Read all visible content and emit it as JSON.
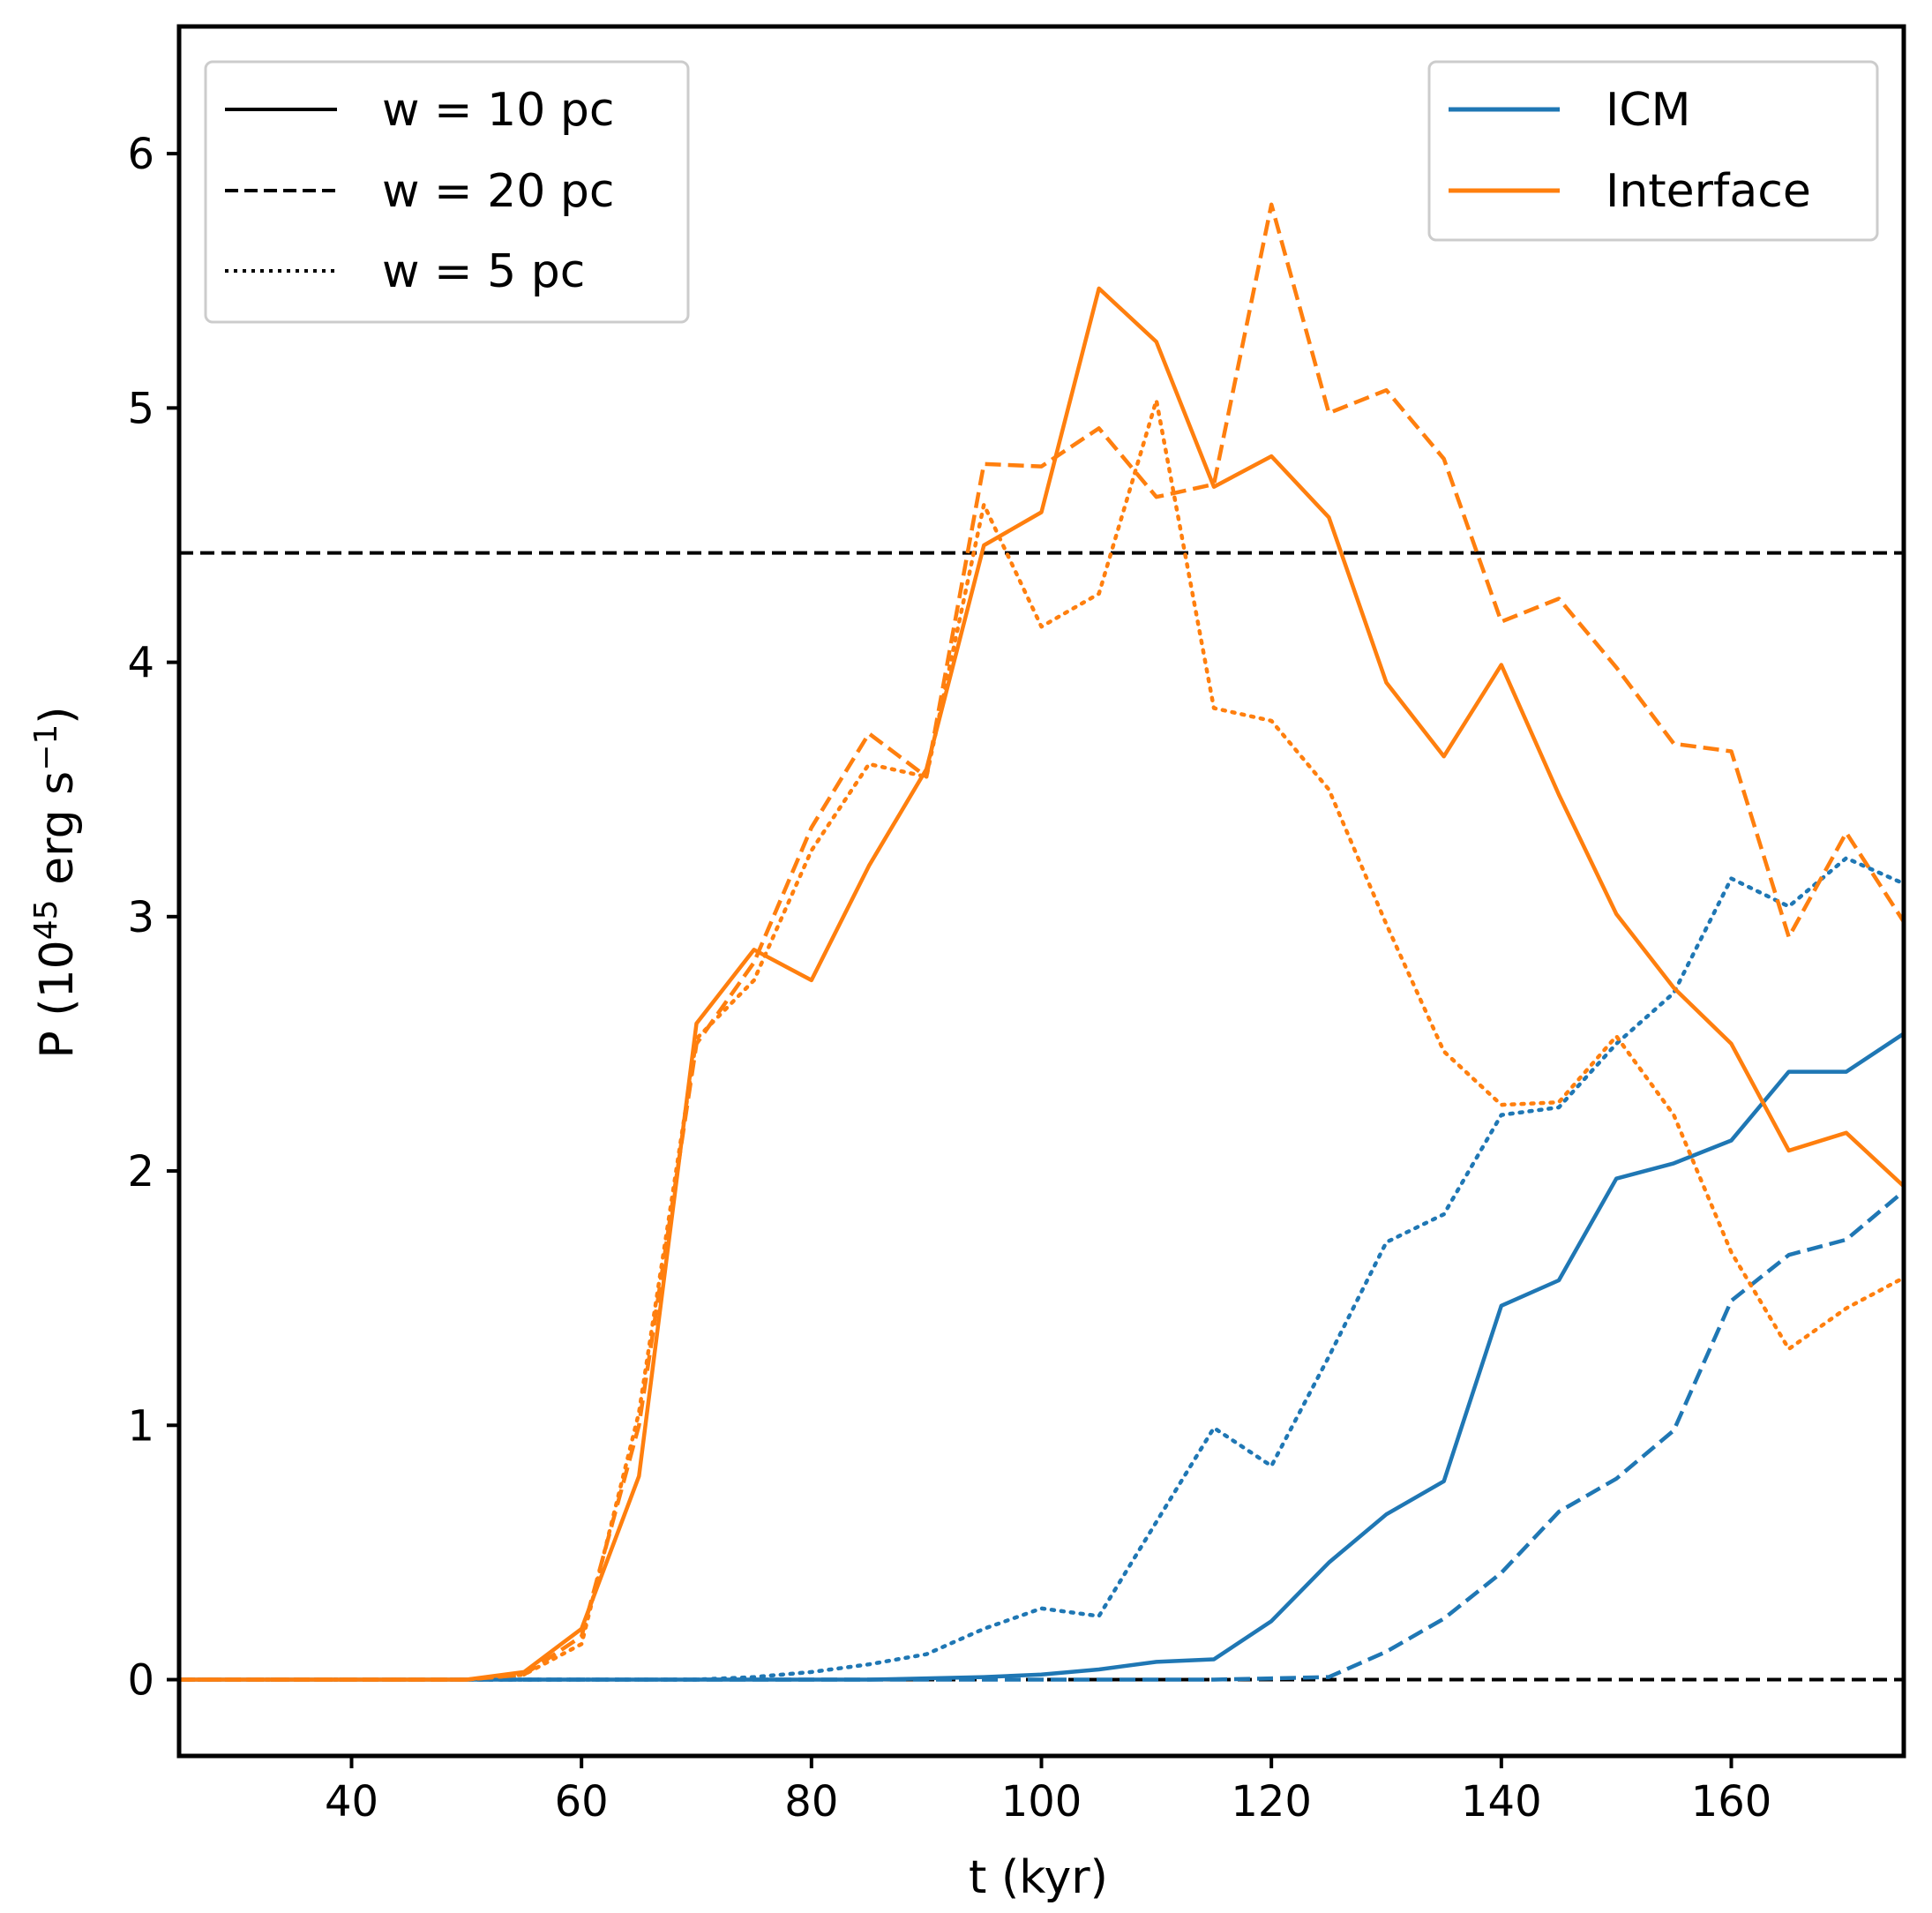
{
  "chart_data": {
    "type": "line",
    "xlabel": "t (kyr)",
    "ylabel": {
      "base": "P (10",
      "sup1": "45",
      "mid": " erg s",
      "sup2": "−1",
      "end": ")"
    },
    "xlim": [
      25,
      175
    ],
    "ylim": [
      -0.3,
      6.5
    ],
    "xticks": [
      40,
      60,
      80,
      100,
      120,
      140,
      160
    ],
    "yticks": [
      0,
      1,
      2,
      3,
      4,
      5,
      6
    ],
    "colors": {
      "icm": "#1f77b4",
      "interface": "#ff7f0e",
      "ref": "#000000"
    },
    "reference_lines": [
      {
        "y": 4.43,
        "style": "dashed"
      },
      {
        "y": 0,
        "style": "dashed"
      }
    ],
    "x": [
      25,
      30,
      35,
      40,
      45,
      50,
      55,
      60,
      65,
      70,
      75,
      80,
      85,
      90,
      95,
      100,
      105,
      110,
      115,
      120,
      125,
      130,
      135,
      140,
      145,
      150,
      155,
      160,
      165,
      170,
      175
    ],
    "series": [
      {
        "name": "ICM, w = 10 pc",
        "component": "ICM",
        "width": "w = 10 pc",
        "style": "solid",
        "values": [
          0,
          0,
          0,
          0,
          0,
          0,
          0,
          0,
          0,
          0,
          0,
          0,
          0,
          0.005,
          0.01,
          0.02,
          0.04,
          0.07,
          0.08,
          0.23,
          0.46,
          0.65,
          0.78,
          1.47,
          1.57,
          1.97,
          2.03,
          2.12,
          2.39,
          2.39,
          2.54
        ]
      },
      {
        "name": "ICM, w = 20 pc",
        "component": "ICM",
        "width": "w = 20 pc",
        "style": "dashed",
        "values": [
          0,
          0,
          0,
          0,
          0,
          0,
          0,
          0,
          0,
          0,
          0,
          0,
          0,
          0,
          0,
          0,
          0,
          0,
          0,
          0.005,
          0.01,
          0.11,
          0.24,
          0.42,
          0.66,
          0.79,
          0.98,
          1.49,
          1.67,
          1.73,
          1.92
        ]
      },
      {
        "name": "ICM, w = 5 pc",
        "component": "ICM",
        "width": "w = 5 pc",
        "style": "dotted",
        "values": [
          0,
          0,
          0,
          0,
          0,
          0,
          0,
          0,
          0,
          0,
          0.01,
          0.03,
          0.06,
          0.1,
          0.2,
          0.28,
          0.25,
          0.62,
          0.99,
          0.84,
          1.27,
          1.72,
          1.83,
          2.22,
          2.25,
          2.5,
          2.7,
          3.15,
          3.04,
          3.23,
          3.13
        ]
      },
      {
        "name": "Interface, w = 10 pc",
        "component": "Interface",
        "width": "w = 10 pc",
        "style": "solid",
        "values": [
          0,
          0,
          0,
          0,
          0,
          0,
          0.03,
          0.2,
          0.8,
          2.58,
          2.87,
          2.75,
          3.2,
          3.58,
          4.46,
          4.59,
          5.47,
          5.26,
          4.69,
          4.81,
          4.57,
          3.92,
          3.63,
          3.99,
          3.48,
          3.01,
          2.72,
          2.5,
          2.08,
          2.15,
          1.94
        ]
      },
      {
        "name": "Interface, w = 20 pc",
        "component": "Interface",
        "width": "w = 20 pc",
        "style": "dashed",
        "values": [
          0,
          0,
          0,
          0,
          0,
          0,
          0.02,
          0.17,
          1.0,
          2.5,
          2.82,
          3.35,
          3.72,
          3.55,
          4.78,
          4.77,
          4.92,
          4.65,
          4.7,
          5.8,
          4.98,
          5.07,
          4.8,
          4.16,
          4.25,
          3.98,
          3.68,
          3.65,
          2.92,
          3.33,
          2.98
        ]
      },
      {
        "name": "Interface, w = 5 pc",
        "component": "Interface",
        "width": "w = 5 pc",
        "style": "dotted",
        "values": [
          0,
          0,
          0,
          0,
          0,
          0,
          0.02,
          0.14,
          1.05,
          2.52,
          2.75,
          3.26,
          3.6,
          3.55,
          4.62,
          4.14,
          4.27,
          5.03,
          3.82,
          3.77,
          3.5,
          2.97,
          2.47,
          2.26,
          2.27,
          2.53,
          2.22,
          1.68,
          1.3,
          1.46,
          1.58
        ]
      }
    ],
    "legend_styles": {
      "position": "top-left",
      "entries": [
        {
          "label": "w = 10 pc",
          "style": "solid"
        },
        {
          "label": "w = 20 pc",
          "style": "dashed"
        },
        {
          "label": "w = 5 pc",
          "style": "dotted"
        }
      ]
    },
    "legend_colors": {
      "position": "top-right",
      "entries": [
        {
          "label": "ICM",
          "color": "#1f77b4"
        },
        {
          "label": "Interface",
          "color": "#ff7f0e"
        }
      ]
    }
  }
}
